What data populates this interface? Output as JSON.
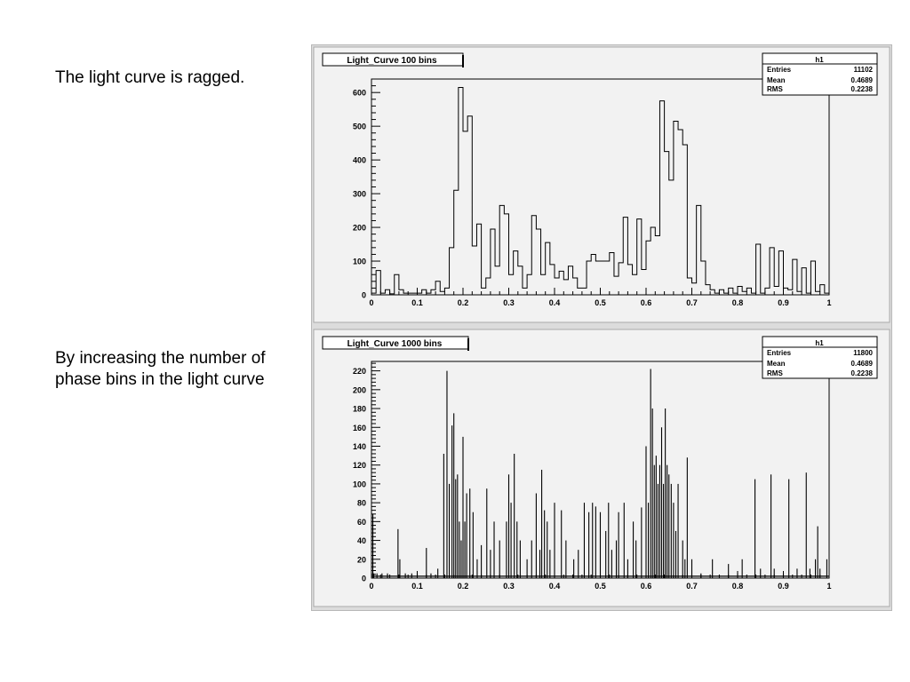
{
  "captions": {
    "top": "The light curve is ragged.",
    "bottom": "By increasing the number of phase bins in the light curve"
  },
  "stats_labels": {
    "entries": "Entries",
    "mean": "Mean",
    "rms": "RMS"
  },
  "colors": {
    "frame_bg": "#e8e8e8",
    "pad_bg": "#f2f2f2",
    "line": "#000000"
  },
  "chart_data": [
    {
      "type": "bar",
      "style": "step-histogram",
      "title": "Light_Curve 100 bins",
      "stats": {
        "name": "h1",
        "entries": "11102",
        "mean": "0.4689",
        "rms": "0.2238"
      },
      "xlabel": "",
      "ylabel": "",
      "xlim": [
        0,
        1
      ],
      "ylim": [
        0,
        640
      ],
      "x_ticks": [
        "0",
        "0.1",
        "0.2",
        "0.3",
        "0.4",
        "0.5",
        "0.6",
        "0.7",
        "0.8",
        "0.9",
        "1"
      ],
      "y_ticks": [
        "0",
        "100",
        "200",
        "300",
        "400",
        "500",
        "600"
      ],
      "grid": false,
      "bin_width": 0.01,
      "values": [
        5,
        72,
        5,
        15,
        3,
        60,
        15,
        5,
        5,
        5,
        5,
        15,
        5,
        15,
        40,
        10,
        20,
        140,
        310,
        615,
        485,
        530,
        145,
        210,
        20,
        50,
        195,
        85,
        265,
        240,
        60,
        130,
        85,
        20,
        60,
        235,
        195,
        60,
        155,
        90,
        50,
        70,
        45,
        85,
        50,
        20,
        20,
        100,
        120,
        100,
        100,
        100,
        125,
        55,
        95,
        230,
        90,
        60,
        225,
        75,
        160,
        200,
        175,
        575,
        425,
        340,
        515,
        490,
        445,
        50,
        35,
        265,
        100,
        30,
        15,
        5,
        15,
        5,
        20,
        5,
        25,
        10,
        20,
        5,
        150,
        5,
        20,
        140,
        25,
        130,
        20,
        15,
        105,
        10,
        80,
        5,
        100,
        10,
        30,
        5
      ]
    },
    {
      "type": "bar",
      "style": "needle-histogram",
      "title": "Light_Curve 1000 bins",
      "stats": {
        "name": "h1",
        "entries": "11800",
        "mean": "0.4689",
        "rms": "0.2238"
      },
      "xlabel": "",
      "ylabel": "",
      "xlim": [
        0,
        1
      ],
      "ylim": [
        0,
        230
      ],
      "x_ticks": [
        "0",
        "0.1",
        "0.2",
        "0.3",
        "0.4",
        "0.5",
        "0.6",
        "0.7",
        "0.8",
        "0.9",
        "1"
      ],
      "y_ticks": [
        "0",
        "20",
        "40",
        "60",
        "80",
        "100",
        "120",
        "140",
        "160",
        "180",
        "200",
        "220"
      ],
      "grid": false,
      "bin_width": 0.001,
      "peaks": [
        [
          0.003,
          68
        ],
        [
          0.005,
          5
        ],
        [
          0.012,
          5
        ],
        [
          0.023,
          5
        ],
        [
          0.035,
          5
        ],
        [
          0.058,
          52
        ],
        [
          0.062,
          20
        ],
        [
          0.074,
          5
        ],
        [
          0.088,
          5
        ],
        [
          0.1,
          5
        ],
        [
          0.12,
          32
        ],
        [
          0.13,
          5
        ],
        [
          0.145,
          10
        ],
        [
          0.158,
          132
        ],
        [
          0.165,
          220
        ],
        [
          0.17,
          100
        ],
        [
          0.176,
          162
        ],
        [
          0.18,
          175
        ],
        [
          0.184,
          105
        ],
        [
          0.188,
          110
        ],
        [
          0.192,
          60
        ],
        [
          0.196,
          40
        ],
        [
          0.2,
          150
        ],
        [
          0.204,
          60
        ],
        [
          0.208,
          90
        ],
        [
          0.215,
          95
        ],
        [
          0.222,
          70
        ],
        [
          0.231,
          20
        ],
        [
          0.24,
          35
        ],
        [
          0.252,
          95
        ],
        [
          0.26,
          30
        ],
        [
          0.268,
          60
        ],
        [
          0.28,
          40
        ],
        [
          0.295,
          60
        ],
        [
          0.3,
          110
        ],
        [
          0.305,
          80
        ],
        [
          0.312,
          132
        ],
        [
          0.318,
          60
        ],
        [
          0.325,
          40
        ],
        [
          0.34,
          20
        ],
        [
          0.35,
          40
        ],
        [
          0.36,
          90
        ],
        [
          0.368,
          30
        ],
        [
          0.372,
          115
        ],
        [
          0.378,
          72
        ],
        [
          0.384,
          60
        ],
        [
          0.39,
          30
        ],
        [
          0.4,
          80
        ],
        [
          0.415,
          72
        ],
        [
          0.425,
          40
        ],
        [
          0.442,
          20
        ],
        [
          0.452,
          30
        ],
        [
          0.465,
          80
        ],
        [
          0.475,
          70
        ],
        [
          0.483,
          80
        ],
        [
          0.49,
          76
        ],
        [
          0.5,
          70
        ],
        [
          0.512,
          50
        ],
        [
          0.518,
          80
        ],
        [
          0.525,
          30
        ],
        [
          0.535,
          40
        ],
        [
          0.54,
          70
        ],
        [
          0.552,
          80
        ],
        [
          0.56,
          20
        ],
        [
          0.572,
          60
        ],
        [
          0.578,
          40
        ],
        [
          0.59,
          75
        ],
        [
          0.6,
          140
        ],
        [
          0.605,
          80
        ],
        [
          0.61,
          222
        ],
        [
          0.614,
          180
        ],
        [
          0.618,
          120
        ],
        [
          0.622,
          130
        ],
        [
          0.626,
          100
        ],
        [
          0.63,
          120
        ],
        [
          0.634,
          160
        ],
        [
          0.638,
          100
        ],
        [
          0.642,
          180
        ],
        [
          0.646,
          120
        ],
        [
          0.65,
          110
        ],
        [
          0.655,
          100
        ],
        [
          0.66,
          80
        ],
        [
          0.665,
          50
        ],
        [
          0.67,
          100
        ],
        [
          0.68,
          40
        ],
        [
          0.685,
          20
        ],
        [
          0.69,
          128
        ],
        [
          0.7,
          20
        ],
        [
          0.72,
          5
        ],
        [
          0.745,
          20
        ],
        [
          0.78,
          15
        ],
        [
          0.8,
          5
        ],
        [
          0.81,
          20
        ],
        [
          0.838,
          105
        ],
        [
          0.85,
          10
        ],
        [
          0.873,
          110
        ],
        [
          0.88,
          10
        ],
        [
          0.9,
          5
        ],
        [
          0.912,
          105
        ],
        [
          0.93,
          10
        ],
        [
          0.95,
          112
        ],
        [
          0.958,
          10
        ],
        [
          0.97,
          20
        ],
        [
          0.975,
          55
        ],
        [
          0.98,
          10
        ],
        [
          0.995,
          20
        ]
      ]
    }
  ]
}
